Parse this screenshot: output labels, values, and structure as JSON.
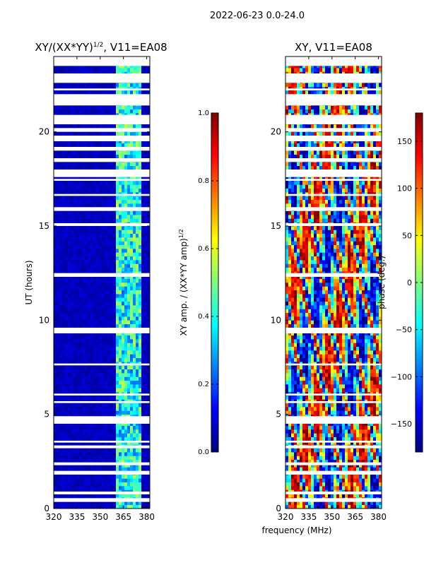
{
  "figure": {
    "suptitle": "2022-06-23 0.0-24.0",
    "xlabel": "frequency (MHz)"
  },
  "colors": {
    "background": "#ffffff",
    "jet": [
      "#00007f",
      "#0000ff",
      "#007fff",
      "#00ffff",
      "#7fff7f",
      "#ffff00",
      "#ff7f00",
      "#ff0000",
      "#7f0000"
    ]
  },
  "chart_data": [
    {
      "type": "heatmap",
      "title_main": "XY/(XX*YY)",
      "title_sup": "1/2",
      "title_rest": ", V11=EA08",
      "ylabel": "UT (hours)",
      "xlim": [
        320,
        382
      ],
      "ylim": [
        0,
        24
      ],
      "xticks": [
        320,
        335,
        350,
        365,
        380
      ],
      "xtick_labels": [
        "320",
        "335",
        "350",
        "365",
        "380"
      ],
      "yticks": [
        0,
        5,
        10,
        15,
        20
      ],
      "ytick_labels": [
        "0",
        "5",
        "10",
        "15",
        "20"
      ],
      "colorbar": {
        "label_main": "XY amp. / (XX*YY amp)",
        "label_sup": "1/2",
        "range": [
          0.0,
          1.0
        ],
        "ticks": [
          0.0,
          0.2,
          0.4,
          0.6,
          0.8,
          1.0
        ],
        "tick_labels": [
          "0.0",
          "0.2",
          "0.4",
          "0.6",
          "0.8",
          "1.0"
        ]
      },
      "data_gaps_hours": [
        [
          0.35,
          0.55
        ],
        [
          0.75,
          0.9
        ],
        [
          1.8,
          2.0
        ],
        [
          2.3,
          2.45
        ],
        [
          3.2,
          3.35
        ],
        [
          3.5,
          3.6
        ],
        [
          4.5,
          4.9
        ],
        [
          5.6,
          5.7
        ],
        [
          6.0,
          6.1
        ],
        [
          7.6,
          7.7
        ],
        [
          9.3,
          9.6
        ],
        [
          12.3,
          12.5
        ],
        [
          15.0,
          15.15
        ],
        [
          15.8,
          16.0
        ],
        [
          16.6,
          16.7
        ],
        [
          17.4,
          17.5
        ],
        [
          17.6,
          18.0
        ],
        [
          18.4,
          18.6
        ],
        [
          19.0,
          19.2
        ],
        [
          19.5,
          19.8
        ],
        [
          20.0,
          20.2
        ],
        [
          20.4,
          20.9
        ],
        [
          21.4,
          22.0
        ],
        [
          22.2,
          22.3
        ],
        [
          22.6,
          23.1
        ],
        [
          23.5,
          24.0
        ]
      ],
      "summary": "low amplitude (~0.05) across 320-360 MHz, elevated amplitude (~0.3-0.5) in band 360-376 MHz"
    },
    {
      "type": "heatmap",
      "title": "XY, V11=EA08",
      "ylabel": "",
      "xlim": [
        320,
        382
      ],
      "ylim": [
        0,
        24
      ],
      "xticks": [
        320,
        335,
        350,
        365,
        380
      ],
      "xtick_labels": [
        "320",
        "335",
        "350",
        "365",
        "380"
      ],
      "yticks": [
        0,
        5,
        10,
        15,
        20
      ],
      "ytick_labels": [
        "0",
        "5",
        "10",
        "15",
        "20"
      ],
      "colorbar": {
        "label": "phase (deg.)",
        "range": [
          -180,
          180
        ],
        "ticks": [
          -150,
          -100,
          -50,
          0,
          50,
          100,
          150
        ],
        "tick_labels": [
          "−150",
          "−100",
          "−50",
          "0",
          "50",
          "100",
          "150"
        ]
      },
      "data_gaps_hours": [
        [
          0.35,
          0.55
        ],
        [
          0.75,
          0.9
        ],
        [
          1.8,
          2.0
        ],
        [
          2.3,
          2.45
        ],
        [
          3.2,
          3.35
        ],
        [
          3.5,
          3.6
        ],
        [
          4.5,
          4.9
        ],
        [
          5.6,
          5.7
        ],
        [
          6.0,
          6.1
        ],
        [
          7.6,
          7.7
        ],
        [
          9.3,
          9.6
        ],
        [
          12.3,
          12.5
        ],
        [
          15.0,
          15.15
        ],
        [
          15.8,
          16.0
        ],
        [
          16.6,
          16.7
        ],
        [
          17.4,
          17.5
        ],
        [
          17.6,
          18.0
        ],
        [
          18.4,
          18.6
        ],
        [
          19.0,
          19.2
        ],
        [
          19.5,
          19.8
        ],
        [
          20.0,
          20.2
        ],
        [
          20.4,
          20.9
        ],
        [
          21.4,
          22.0
        ],
        [
          22.2,
          22.3
        ],
        [
          22.6,
          23.1
        ],
        [
          23.5,
          24.0
        ]
      ],
      "summary": "noisy phase pattern spanning full range -180 to 180 degrees"
    }
  ]
}
